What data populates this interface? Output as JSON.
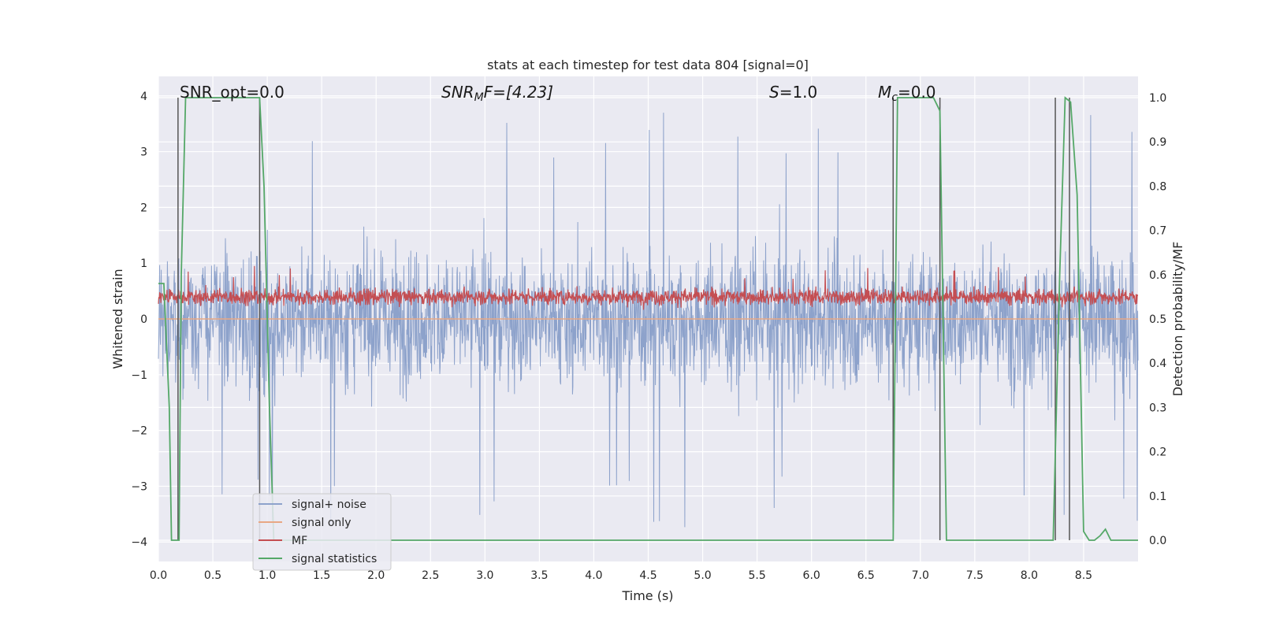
{
  "chart_data": {
    "type": "line",
    "title": "stats at each timestep for test data 804 [signal=0]",
    "xlabel": "Time (s)",
    "ylabel": "Whitened strain",
    "ylabel_right": "Detection probability/MF",
    "xlim": [
      0.0,
      9.0
    ],
    "ylim": [
      -4.35,
      4.35
    ],
    "ylim_right": [
      -0.048,
      1.048
    ],
    "x_ticks": [
      "0.0",
      "0.5",
      "1.0",
      "1.5",
      "2.0",
      "2.5",
      "3.0",
      "3.5",
      "4.0",
      "4.5",
      "5.0",
      "5.5",
      "6.0",
      "6.5",
      "7.0",
      "7.5",
      "8.0",
      "8.5"
    ],
    "y_ticks": [
      "4",
      "3",
      "2",
      "1",
      "0",
      "−1",
      "−2",
      "−3",
      "−4"
    ],
    "y_ticks_right": [
      "1.0",
      "0.9",
      "0.8",
      "0.7",
      "0.6",
      "0.5",
      "0.4",
      "0.3",
      "0.2",
      "0.1",
      "0.0"
    ],
    "grid": true,
    "legend_position": "lower-left",
    "annotations": {
      "snr_opt": "SNR_opt=0.0",
      "snr_mf_label": "SNR",
      "snr_mf_sub": "M",
      "snr_mf_rest": "F=[4.23]",
      "s_label": "S",
      "s_rest": "=1.0",
      "mc_label": "M",
      "mc_sub": "c",
      "mc_rest": "=0.0"
    },
    "series": [
      {
        "name": "signal+ noise",
        "color": "#8da2cb",
        "description": "noisy whitened strain, roughly ±2 with spikes up to ±4"
      },
      {
        "name": "signal only",
        "color": "#e8a784",
        "values_constant": 0.0
      },
      {
        "name": "MF",
        "color": "#c44e52",
        "axis": "right",
        "range": [
          0.51,
          0.59
        ]
      },
      {
        "name": "signal statistics",
        "color": "#55a868",
        "axis": "right",
        "x": [
          0.0,
          0.05,
          0.1,
          0.12,
          0.17,
          0.19,
          0.21,
          0.25,
          0.3,
          0.45,
          0.6,
          0.75,
          0.93,
          0.97,
          1.02,
          1.06,
          1.1,
          1.5,
          2.0,
          3.0,
          4.0,
          5.0,
          6.0,
          6.75,
          6.79,
          6.85,
          7.0,
          7.12,
          7.18,
          7.24,
          7.5,
          8.0,
          8.22,
          8.28,
          8.33,
          8.38,
          8.44,
          8.5,
          8.55,
          8.6,
          8.65,
          8.7,
          8.75,
          8.8,
          8.9,
          9.0
        ],
        "y": [
          0.58,
          0.58,
          0.3,
          0.0,
          0.0,
          0.0,
          0.6,
          1.0,
          1.0,
          1.0,
          1.0,
          1.0,
          1.0,
          0.8,
          0.3,
          0.0,
          0.0,
          0.0,
          0.0,
          0.0,
          0.0,
          0.0,
          0.0,
          0.0,
          1.0,
          1.0,
          1.0,
          1.0,
          0.97,
          0.0,
          0.0,
          0.0,
          0.0,
          0.6,
          1.0,
          0.99,
          0.78,
          0.02,
          0.0,
          0.0,
          0.01,
          0.025,
          0.0,
          0.0,
          0.0,
          0.0
        ]
      }
    ],
    "vertical_markers_x": [
      0.18,
      0.93,
      6.75,
      7.18,
      8.24,
      8.37
    ]
  }
}
